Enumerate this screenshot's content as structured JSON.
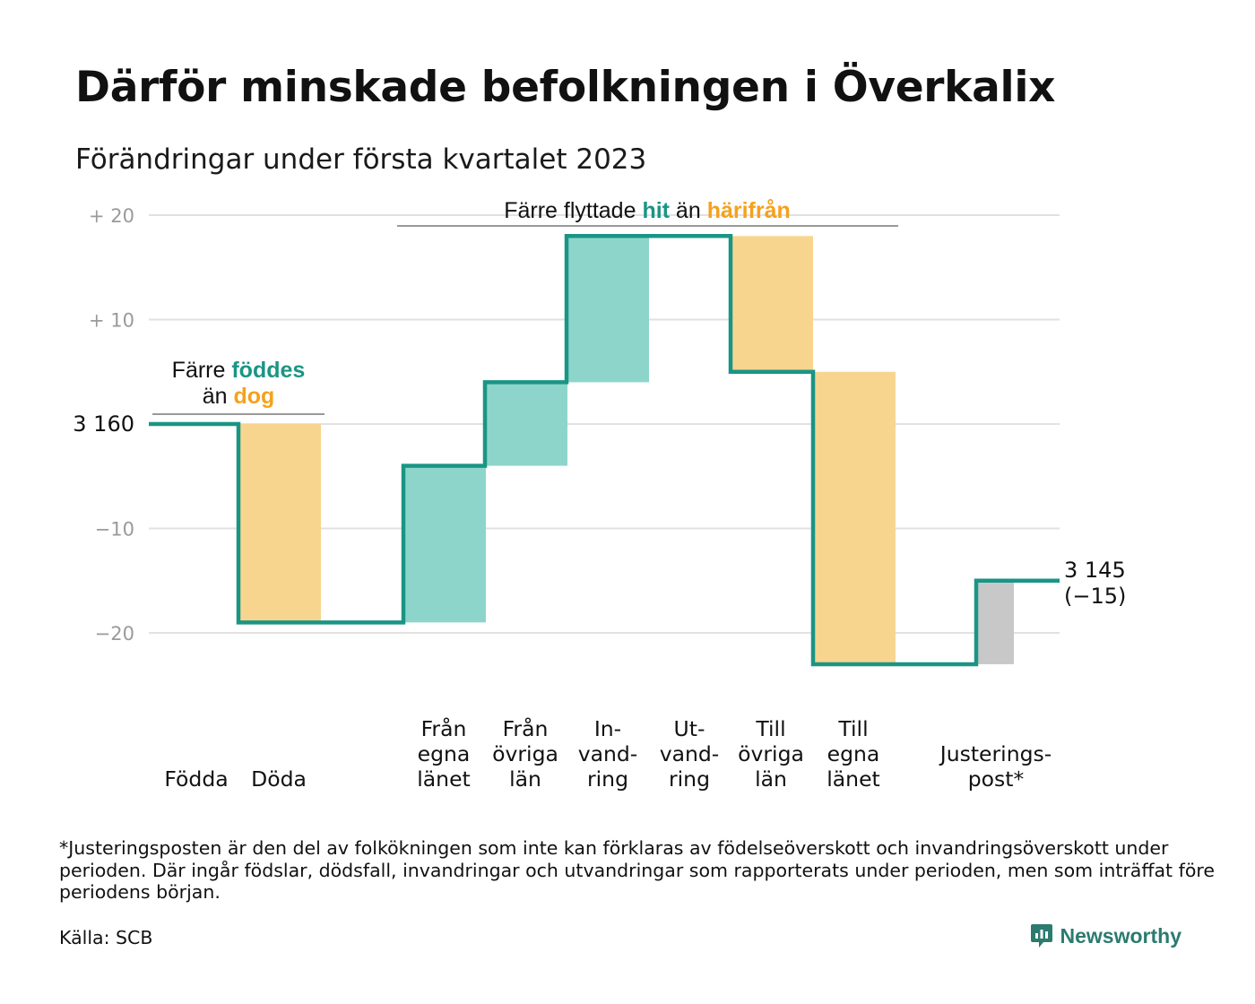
{
  "title": "Därför minskade befolkningen i Överkalix",
  "subtitle": "Förändringar under första kvartalet 2023",
  "chart_data": {
    "type": "waterfall",
    "start_value": 3160,
    "end_value": 3145,
    "y_axis": {
      "ylim": [
        -28,
        22
      ],
      "ticks": [
        {
          "value": 20,
          "label": "+ 20"
        },
        {
          "value": 10,
          "label": "+ 10"
        },
        {
          "value": 0,
          "label": "3 160"
        },
        {
          "value": -10,
          "label": "−10"
        },
        {
          "value": -20,
          "label": "−20"
        }
      ],
      "grid": true
    },
    "steps": [
      {
        "category": [
          "Födda"
        ],
        "change": 0,
        "color": "#f8d58f"
      },
      {
        "category": [
          "Döda"
        ],
        "change": -19,
        "color": "#f8d58f"
      },
      {
        "category": [
          ""
        ],
        "change": 0,
        "color": "#8dd5cb"
      },
      {
        "category": [
          "Från",
          "egna",
          "länet"
        ],
        "change": 15,
        "color": "#8dd5cb"
      },
      {
        "category": [
          "Från",
          "övriga",
          "län"
        ],
        "change": 8,
        "color": "#8dd5cb"
      },
      {
        "category": [
          "In-",
          "vand-",
          "ring"
        ],
        "change": 14,
        "color": "#8dd5cb"
      },
      {
        "category": [
          "Ut-",
          "vand-",
          "ring"
        ],
        "change": 0,
        "color": "#f8d58f"
      },
      {
        "category": [
          "Till",
          "övriga",
          "län"
        ],
        "change": -13,
        "color": "#f8d58f"
      },
      {
        "category": [
          "Till",
          "egna",
          "länet"
        ],
        "change": -28,
        "color": "#f8d58f"
      },
      {
        "category": [
          "Justerings-",
          "post*"
        ],
        "change": 8,
        "color": "#c8c8c8"
      }
    ],
    "end_label": {
      "value": "3 145",
      "change": "(−15)"
    },
    "annotations": [
      {
        "lines": [
          [
            {
              "text": "Färre ",
              "style": "plain"
            },
            {
              "text": "föddes",
              "style": "teal"
            }
          ],
          [
            {
              "text": "än ",
              "style": "plain"
            },
            {
              "text": "dog",
              "style": "orange"
            }
          ]
        ]
      },
      {
        "lines": [
          [
            {
              "text": "Färre flyttade ",
              "style": "plain"
            },
            {
              "text": "hit",
              "style": "teal"
            },
            {
              "text": " än ",
              "style": "plain"
            },
            {
              "text": "härifrån",
              "style": "orange"
            }
          ]
        ]
      }
    ]
  },
  "colors": {
    "line": "#1a9585",
    "teal_text": "#1a9585",
    "orange_text": "#f5a11c",
    "inflow": "#8dd5cb",
    "outflow": "#f8d58f",
    "adjustment": "#c8c8c8",
    "grid": "#e1e1e1",
    "tick_text": "#9a9a9a"
  },
  "footnote": "*Justeringsposten är den del av folkökningen som inte kan förklaras av födelseöverskott och invandringsöverskott under perioden. Där ingår födslar, dödsfall, invandringar och utvandringar som rapporterats under perioden, men som inträffat före periodens början.",
  "source": "Källa: SCB",
  "brand": {
    "name": "Newsworthy",
    "icon": "newsworthy-logo-icon"
  }
}
